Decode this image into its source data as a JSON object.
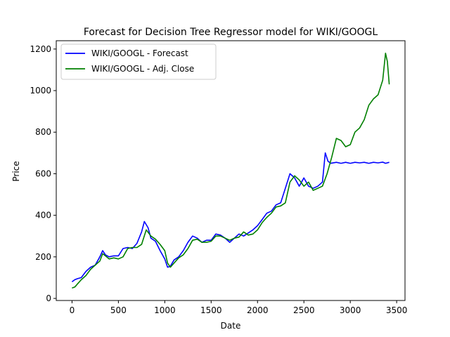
{
  "chart_data": {
    "type": "line",
    "title": "Forecast for Decision Tree Regressor model for WIKI/GOOGL",
    "xlabel": "Date",
    "ylabel": "Price",
    "xlim": [
      -170,
      3590
    ],
    "ylim": [
      -10,
      1240
    ],
    "xticks": [
      0,
      500,
      1000,
      1500,
      2000,
      2500,
      3000,
      3500
    ],
    "yticks": [
      0,
      200,
      400,
      600,
      800,
      1000,
      1200
    ],
    "grid": false,
    "legend": {
      "placement": "top-left"
    },
    "series": [
      {
        "name": "WIKI/GOOGL - Forecast",
        "color": "#0000ff",
        "points": [
          [
            0,
            80
          ],
          [
            30,
            90
          ],
          [
            60,
            95
          ],
          [
            100,
            100
          ],
          [
            150,
            130
          ],
          [
            200,
            150
          ],
          [
            250,
            160
          ],
          [
            300,
            200
          ],
          [
            330,
            230
          ],
          [
            360,
            210
          ],
          [
            400,
            200
          ],
          [
            450,
            205
          ],
          [
            500,
            205
          ],
          [
            550,
            240
          ],
          [
            600,
            245
          ],
          [
            650,
            240
          ],
          [
            700,
            265
          ],
          [
            750,
            320
          ],
          [
            780,
            370
          ],
          [
            820,
            340
          ],
          [
            850,
            290
          ],
          [
            900,
            275
          ],
          [
            950,
            230
          ],
          [
            1000,
            190
          ],
          [
            1030,
            150
          ],
          [
            1060,
            155
          ],
          [
            1100,
            185
          ],
          [
            1150,
            200
          ],
          [
            1200,
            230
          ],
          [
            1250,
            270
          ],
          [
            1300,
            300
          ],
          [
            1350,
            290
          ],
          [
            1400,
            270
          ],
          [
            1450,
            280
          ],
          [
            1500,
            280
          ],
          [
            1550,
            310
          ],
          [
            1600,
            305
          ],
          [
            1650,
            290
          ],
          [
            1700,
            270
          ],
          [
            1750,
            290
          ],
          [
            1800,
            310
          ],
          [
            1850,
            300
          ],
          [
            1900,
            315
          ],
          [
            1950,
            330
          ],
          [
            2000,
            350
          ],
          [
            2050,
            380
          ],
          [
            2100,
            410
          ],
          [
            2150,
            420
          ],
          [
            2200,
            450
          ],
          [
            2250,
            460
          ],
          [
            2300,
            530
          ],
          [
            2350,
            600
          ],
          [
            2400,
            580
          ],
          [
            2450,
            540
          ],
          [
            2500,
            580
          ],
          [
            2550,
            540
          ],
          [
            2600,
            530
          ],
          [
            2650,
            540
          ],
          [
            2700,
            560
          ],
          [
            2730,
            700
          ],
          [
            2760,
            660
          ],
          [
            2790,
            650
          ],
          [
            2850,
            655
          ],
          [
            2900,
            650
          ],
          [
            2950,
            655
          ],
          [
            3000,
            650
          ],
          [
            3050,
            655
          ],
          [
            3100,
            652
          ],
          [
            3150,
            655
          ],
          [
            3200,
            650
          ],
          [
            3250,
            655
          ],
          [
            3300,
            652
          ],
          [
            3350,
            656
          ],
          [
            3380,
            650
          ],
          [
            3420,
            655
          ]
        ]
      },
      {
        "name": "WIKI/GOOGL - Adj. Close",
        "color": "#008000",
        "points": [
          [
            0,
            50
          ],
          [
            30,
            55
          ],
          [
            60,
            70
          ],
          [
            100,
            90
          ],
          [
            150,
            110
          ],
          [
            200,
            140
          ],
          [
            250,
            160
          ],
          [
            300,
            180
          ],
          [
            330,
            215
          ],
          [
            360,
            205
          ],
          [
            400,
            190
          ],
          [
            450,
            195
          ],
          [
            500,
            190
          ],
          [
            550,
            200
          ],
          [
            600,
            240
          ],
          [
            650,
            245
          ],
          [
            700,
            245
          ],
          [
            750,
            260
          ],
          [
            800,
            330
          ],
          [
            850,
            300
          ],
          [
            900,
            285
          ],
          [
            950,
            260
          ],
          [
            1000,
            230
          ],
          [
            1030,
            170
          ],
          [
            1060,
            150
          ],
          [
            1100,
            170
          ],
          [
            1150,
            195
          ],
          [
            1200,
            210
          ],
          [
            1250,
            240
          ],
          [
            1300,
            280
          ],
          [
            1350,
            285
          ],
          [
            1400,
            270
          ],
          [
            1450,
            270
          ],
          [
            1500,
            275
          ],
          [
            1550,
            300
          ],
          [
            1600,
            300
          ],
          [
            1650,
            290
          ],
          [
            1700,
            280
          ],
          [
            1750,
            290
          ],
          [
            1800,
            295
          ],
          [
            1850,
            320
          ],
          [
            1900,
            305
          ],
          [
            1950,
            310
          ],
          [
            2000,
            330
          ],
          [
            2050,
            365
          ],
          [
            2100,
            390
          ],
          [
            2150,
            410
          ],
          [
            2200,
            440
          ],
          [
            2250,
            445
          ],
          [
            2300,
            460
          ],
          [
            2350,
            560
          ],
          [
            2400,
            590
          ],
          [
            2450,
            570
          ],
          [
            2500,
            540
          ],
          [
            2550,
            560
          ],
          [
            2600,
            520
          ],
          [
            2650,
            530
          ],
          [
            2700,
            540
          ],
          [
            2750,
            600
          ],
          [
            2800,
            680
          ],
          [
            2850,
            770
          ],
          [
            2900,
            760
          ],
          [
            2950,
            730
          ],
          [
            3000,
            740
          ],
          [
            3050,
            800
          ],
          [
            3100,
            820
          ],
          [
            3150,
            860
          ],
          [
            3200,
            930
          ],
          [
            3250,
            960
          ],
          [
            3300,
            980
          ],
          [
            3350,
            1050
          ],
          [
            3380,
            1180
          ],
          [
            3400,
            1140
          ],
          [
            3420,
            1030
          ]
        ]
      }
    ]
  }
}
